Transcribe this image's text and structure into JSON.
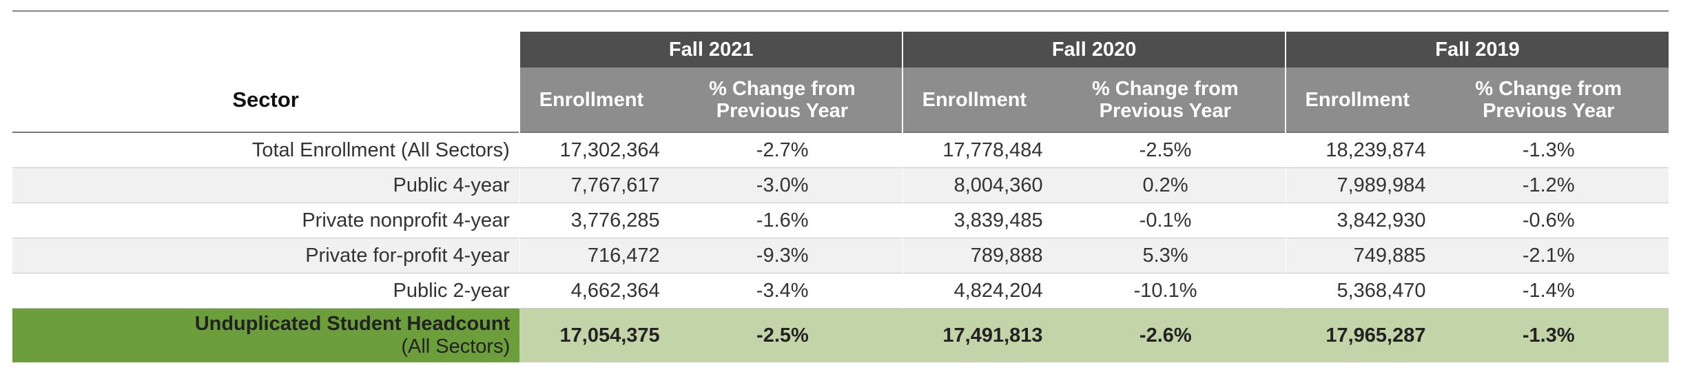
{
  "header": {
    "sector_label": "Sector",
    "years": [
      "Fall 2021",
      "Fall 2020",
      "Fall 2019"
    ],
    "enrollment_label": "Enrollment",
    "pct_label_line1": "% Change from",
    "pct_label_line2": "Previous Year"
  },
  "rows": [
    {
      "sector": "Total Enrollment (All Sectors)",
      "values": [
        "17,302,364",
        "-2.7%",
        "17,778,484",
        "-2.5%",
        "18,239,874",
        "-1.3%"
      ]
    },
    {
      "sector": "Public 4-year",
      "values": [
        "7,767,617",
        "-3.0%",
        "8,004,360",
        "0.2%",
        "7,989,984",
        "-1.2%"
      ]
    },
    {
      "sector": "Private nonprofit 4-year",
      "values": [
        "3,776,285",
        "-1.6%",
        "3,839,485",
        "-0.1%",
        "3,842,930",
        "-0.6%"
      ]
    },
    {
      "sector": "Private for-profit 4-year",
      "values": [
        "716,472",
        "-9.3%",
        "789,888",
        "5.3%",
        "749,885",
        "-2.1%"
      ]
    },
    {
      "sector": "Public 2-year",
      "values": [
        "4,662,364",
        "-3.4%",
        "4,824,204",
        "-10.1%",
        "5,368,470",
        "-1.4%"
      ]
    }
  ],
  "total": {
    "sector_line1": "Unduplicated Student Headcount",
    "sector_line2": "(All Sectors)",
    "values": [
      "17,054,375",
      "-2.5%",
      "17,491,813",
      "-2.6%",
      "17,965,287",
      "-1.3%"
    ]
  },
  "colors": {
    "year_header": "#4e4e4e",
    "sub_header": "#8d8d8d",
    "total_sector_bg": "#6c9e3c",
    "total_row_bg": "#c3d5a8",
    "alt_row_bg": "#f1f1f1"
  }
}
